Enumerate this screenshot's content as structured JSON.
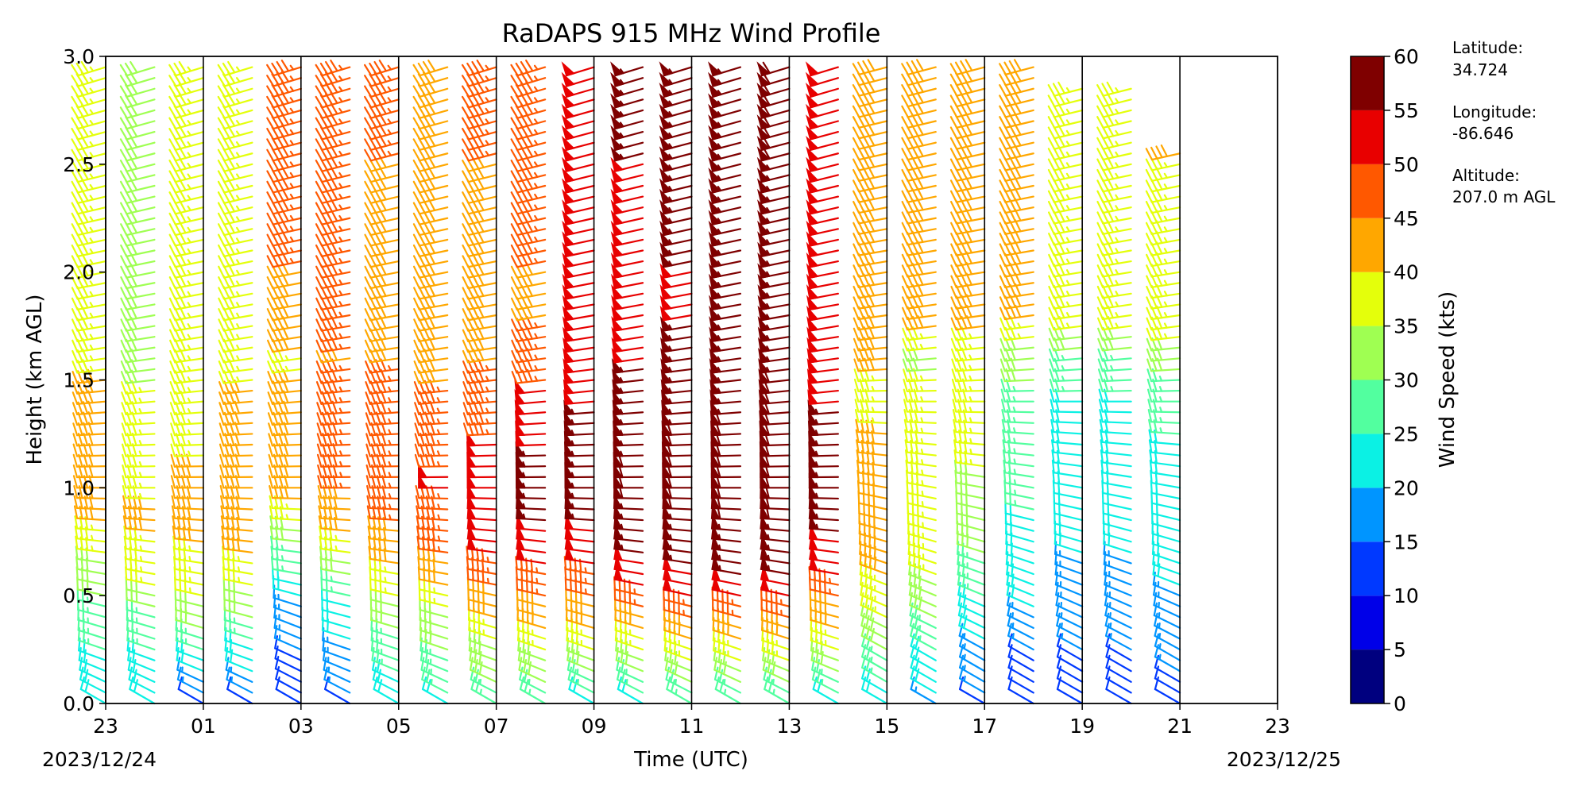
{
  "chart_data": {
    "type": "wind-barb-profile",
    "title": "RaDAPS 915 MHz Wind Profile",
    "xlabel": "Time (UTC)",
    "ylabel": "Height (km AGL)",
    "x_ticks": [
      "23",
      "01",
      "03",
      "05",
      "07",
      "09",
      "11",
      "13",
      "15",
      "17",
      "19",
      "21",
      "23"
    ],
    "x_tick_hours": [
      0,
      2,
      4,
      6,
      8,
      10,
      12,
      14,
      16,
      18,
      20,
      22,
      24
    ],
    "date_start": "2023/12/24",
    "date_end": "2023/12/25",
    "y_ticks": [
      "0.0",
      "0.5",
      "1.0",
      "1.5",
      "2.0",
      "2.5",
      "3.0"
    ],
    "ylim": [
      0,
      3
    ],
    "xlim_hours": [
      0,
      24
    ],
    "vertical_lines_hours": [
      0,
      2,
      4,
      6,
      8,
      10,
      12,
      14,
      16,
      18,
      20,
      22
    ],
    "colorbar": {
      "label": "Wind Speed (kts)",
      "ticks": [
        "0",
        "5",
        "10",
        "15",
        "20",
        "25",
        "30",
        "35",
        "40",
        "45",
        "50",
        "55",
        "60"
      ],
      "bounds": [
        0,
        5,
        10,
        15,
        20,
        25,
        30,
        35,
        40,
        45,
        50,
        55,
        60
      ],
      "colors": [
        "#00007f",
        "#0000e8",
        "#0039ff",
        "#0095ff",
        "#0bf1e4",
        "#52ff9f",
        "#9fff52",
        "#e4ff0b",
        "#ffa700",
        "#ff5800",
        "#e80000",
        "#7f0000"
      ]
    },
    "site": {
      "latitude_label": "Latitude:",
      "latitude": "34.724",
      "longitude_label": "Longitude:",
      "longitude": "-86.646",
      "altitude_label": "Altitude:",
      "altitude": "207.0 m AGL"
    },
    "profiles": [
      {
        "hour": 0.0,
        "top": 2.95,
        "low": [
          18,
          22,
          26,
          30,
          37,
          41,
          40,
          38,
          37,
          33
        ],
        "dirs": [
          300,
          290,
          285,
          280,
          275,
          270,
          268,
          265,
          262,
          260
        ]
      },
      {
        "hour": 1.0,
        "top": 2.95,
        "low": [
          18,
          22,
          27,
          35,
          38,
          37,
          35,
          33,
          31,
          30
        ],
        "dirs": [
          300,
          290,
          285,
          280,
          275,
          270,
          268,
          265,
          262,
          260
        ]
      },
      {
        "hour": 2.0,
        "top": 2.95,
        "low": [
          12,
          22,
          30,
          36,
          38,
          38,
          37,
          36,
          35,
          34
        ],
        "dirs": [
          300,
          290,
          285,
          280,
          275,
          270,
          268,
          265,
          262,
          260
        ]
      },
      {
        "hour": 3.0,
        "top": 2.95,
        "low": [
          12,
          20,
          28,
          35,
          40,
          41,
          40,
          38,
          36,
          35
        ],
        "dirs": [
          300,
          290,
          285,
          280,
          275,
          270,
          268,
          265,
          262,
          260
        ]
      },
      {
        "hour": 4.0,
        "top": 2.95,
        "low": [
          10,
          12,
          15,
          24,
          30,
          40,
          41,
          38,
          37,
          42
        ],
        "dirs": [
          300,
          295,
          290,
          280,
          275,
          270,
          268,
          265,
          262,
          260
        ]
      },
      {
        "hour": 5.0,
        "top": 2.95,
        "low": [
          12,
          15,
          20,
          28,
          40,
          43,
          46,
          45,
          42,
          44
        ],
        "dirs": [
          300,
          290,
          285,
          280,
          275,
          270,
          268,
          265,
          262,
          260
        ]
      },
      {
        "hour": 6.0,
        "top": 2.95,
        "low": [
          20,
          24,
          30,
          36,
          42,
          46,
          47,
          44,
          42,
          41
        ],
        "dirs": [
          300,
          290,
          285,
          280,
          275,
          270,
          268,
          265,
          262,
          260
        ]
      },
      {
        "hour": 7.0,
        "top": 2.95,
        "low": [
          22,
          26,
          32,
          40,
          45,
          48,
          46,
          43,
          41,
          40
        ],
        "dirs": [
          300,
          290,
          285,
          280,
          275,
          270,
          268,
          265,
          262,
          260
        ]
      },
      {
        "hour": 8.0,
        "top": 2.95,
        "low": [
          25,
          30,
          38,
          45,
          50,
          50,
          48,
          45,
          42,
          41
        ],
        "dirs": [
          300,
          290,
          285,
          280,
          275,
          270,
          268,
          265,
          262,
          260
        ]
      },
      {
        "hour": 9.0,
        "top": 2.95,
        "low": [
          25,
          32,
          40,
          47,
          52,
          54,
          52,
          49,
          45,
          42
        ],
        "dirs": [
          300,
          290,
          285,
          280,
          275,
          270,
          268,
          265,
          262,
          260
        ]
      },
      {
        "hour": 10.0,
        "top": 2.95,
        "low": [
          22,
          30,
          40,
          47,
          52,
          55,
          54,
          52,
          50,
          48
        ],
        "dirs": [
          300,
          290,
          285,
          280,
          275,
          270,
          268,
          265,
          262,
          260
        ]
      },
      {
        "hour": 11.0,
        "top": 2.95,
        "low": [
          22,
          32,
          42,
          50,
          56,
          58,
          57,
          55,
          52,
          51
        ],
        "dirs": [
          300,
          290,
          285,
          280,
          275,
          270,
          268,
          265,
          262,
          260
        ]
      },
      {
        "hour": 12.0,
        "top": 2.95,
        "low": [
          24,
          33,
          44,
          52,
          57,
          58,
          58,
          56,
          54,
          52
        ],
        "dirs": [
          300,
          290,
          285,
          280,
          275,
          270,
          268,
          265,
          262,
          260
        ]
      },
      {
        "hour": 13.0,
        "top": 2.95,
        "low": [
          25,
          34,
          45,
          53,
          57,
          59,
          58,
          57,
          56,
          55
        ],
        "dirs": [
          300,
          290,
          285,
          280,
          275,
          270,
          268,
          265,
          262,
          260
        ]
      },
      {
        "hour": 14.0,
        "top": 2.95,
        "low": [
          24,
          33,
          44,
          53,
          57,
          59,
          59,
          58,
          57,
          56
        ],
        "dirs": [
          300,
          290,
          285,
          280,
          275,
          270,
          268,
          265,
          262,
          260
        ]
      },
      {
        "hour": 15.0,
        "top": 2.95,
        "low": [
          22,
          30,
          40,
          48,
          53,
          55,
          54,
          52,
          50,
          49
        ],
        "dirs": [
          300,
          290,
          285,
          280,
          275,
          270,
          268,
          265,
          262,
          260
        ]
      },
      {
        "hour": 16.0,
        "top": 2.95,
        "low": [
          20,
          26,
          33,
          38,
          40,
          40,
          38,
          36,
          38,
          40
        ],
        "dirs": [
          300,
          300,
          295,
          290,
          285,
          280,
          275,
          270,
          265,
          262
        ]
      },
      {
        "hour": 17.0,
        "top": 2.95,
        "low": [
          17,
          22,
          28,
          33,
          37,
          37,
          35,
          33,
          32,
          40
        ],
        "dirs": [
          300,
          300,
          295,
          290,
          285,
          280,
          275,
          270,
          265,
          262
        ]
      },
      {
        "hour": 18.0,
        "top": 2.95,
        "low": [
          12,
          16,
          20,
          26,
          30,
          32,
          33,
          33,
          34,
          40
        ],
        "dirs": [
          300,
          300,
          295,
          290,
          285,
          280,
          275,
          270,
          265,
          262
        ]
      },
      {
        "hour": 19.0,
        "top": 2.95,
        "low": [
          8,
          12,
          17,
          20,
          22,
          23,
          24,
          26,
          30,
          38
        ],
        "dirs": [
          300,
          300,
          295,
          290,
          285,
          280,
          275,
          270,
          265,
          262
        ]
      },
      {
        "hour": 20.0,
        "top": 2.85,
        "low": [
          8,
          12,
          15,
          17,
          18,
          18,
          19,
          22,
          26,
          35
        ],
        "dirs": [
          300,
          300,
          295,
          290,
          285,
          280,
          275,
          270,
          265,
          262
        ]
      },
      {
        "hour": 21.0,
        "top": 2.85,
        "low": [
          8,
          12,
          15,
          17,
          18,
          18,
          19,
          22,
          26,
          35
        ],
        "dirs": [
          300,
          300,
          295,
          290,
          285,
          280,
          275,
          270,
          265,
          262
        ]
      },
      {
        "hour": 22.0,
        "top": 2.55,
        "low": [
          10,
          14,
          16,
          18,
          19,
          20,
          22,
          25,
          30,
          36
        ],
        "dirs": [
          300,
          300,
          295,
          290,
          285,
          280,
          275,
          270,
          265,
          262
        ]
      }
    ]
  }
}
